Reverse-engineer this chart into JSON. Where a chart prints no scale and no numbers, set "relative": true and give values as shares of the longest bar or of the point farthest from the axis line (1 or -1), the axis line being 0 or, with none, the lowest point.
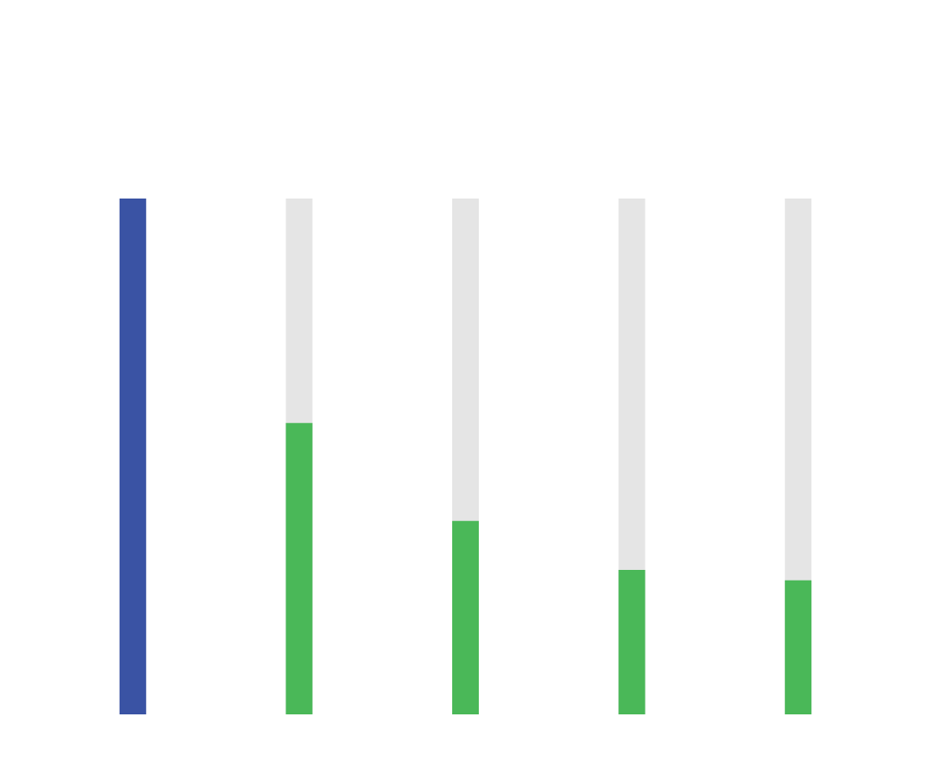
{
  "chart_data": {
    "type": "bar",
    "relative": true,
    "categories": [
      null,
      null,
      null,
      null,
      null
    ],
    "values": [
      1,
      0.565,
      0.375,
      0.28,
      0.26
    ],
    "colors": [
      "#3a53a4",
      "#4ab858",
      "#4ab858",
      "#4ab858",
      "#4ab858"
    ]
  }
}
